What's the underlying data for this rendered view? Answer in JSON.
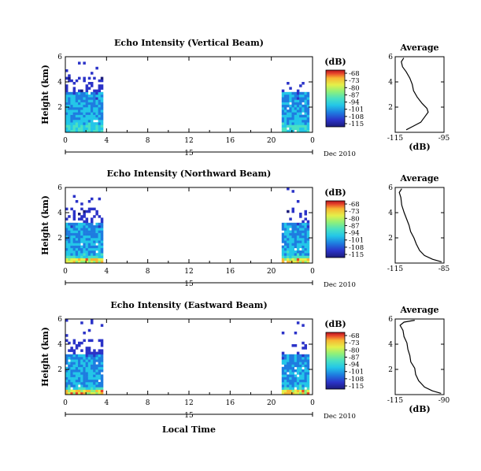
{
  "figure": {
    "xlabel": "Local Time",
    "date_label": "Dec 2010",
    "colorbar_unit": "(dB)",
    "colorbar_ticks": [
      "-68",
      "-73",
      "-80",
      "-87",
      "-94",
      "-101",
      "-108",
      "-115"
    ],
    "colorscale": [
      "#1b1b7a",
      "#2b33c8",
      "#1e7ce0",
      "#23c6e8",
      "#49e0c2",
      "#8ef07a",
      "#e4f04a",
      "#f7b733",
      "#e8462a",
      "#b3121f"
    ]
  },
  "chart_data": [
    {
      "type": "heatmap",
      "title": "Echo Intensity (Vertical Beam)",
      "ylabel": "Height (km)",
      "xticks": [
        "0",
        "4",
        "8",
        "12",
        "16",
        "20",
        "0"
      ],
      "xrange_hours": [
        0,
        24
      ],
      "day_marker": "15",
      "yticks": [
        "2",
        "4",
        "6"
      ],
      "ylim_km": [
        0,
        6
      ],
      "zlim_db": [
        -115,
        -66
      ],
      "data_periods_hours": [
        [
          0,
          3.6
        ],
        [
          21,
          23.6
        ]
      ],
      "profile": {
        "title": "Average",
        "xticks": [
          "-115",
          "-95"
        ],
        "xlim_db": [
          -115,
          -95
        ],
        "xlabel": "(dB)",
        "yticks": [
          "2",
          "4",
          "6"
        ],
        "points": [
          [
            -110.5,
            0.2
          ],
          [
            -107.5,
            0.5
          ],
          [
            -104.5,
            0.8
          ],
          [
            -103,
            1.2
          ],
          [
            -101.5,
            1.6
          ],
          [
            -102,
            1.9
          ],
          [
            -104,
            2.3
          ],
          [
            -106,
            2.8
          ],
          [
            -107.5,
            3.3
          ],
          [
            -108,
            3.8
          ],
          [
            -109,
            4.3
          ],
          [
            -110.5,
            4.8
          ],
          [
            -112,
            5.2
          ],
          [
            -112.5,
            5.6
          ],
          [
            -111.5,
            5.9
          ]
        ]
      }
    },
    {
      "type": "heatmap",
      "title": "Echo Intensity (Northward Beam)",
      "ylabel": "Height (km)",
      "xticks": [
        "0",
        "4",
        "8",
        "12",
        "16",
        "20",
        "0"
      ],
      "xrange_hours": [
        0,
        24
      ],
      "day_marker": "15",
      "yticks": [
        "2",
        "4",
        "6"
      ],
      "ylim_km": [
        0,
        6
      ],
      "zlim_db": [
        -115,
        -66
      ],
      "data_periods_hours": [
        [
          0,
          3.6
        ],
        [
          21,
          23.6
        ]
      ],
      "profile": {
        "title": "Average",
        "xticks": [
          "-115",
          "-85"
        ],
        "xlim_db": [
          -115,
          -85
        ],
        "xlabel": "",
        "yticks": [
          "2",
          "4",
          "6"
        ],
        "points": [
          [
            -86.5,
            0.1
          ],
          [
            -92,
            0.3
          ],
          [
            -97,
            0.6
          ],
          [
            -100,
            1.0
          ],
          [
            -102,
            1.5
          ],
          [
            -103.5,
            2.0
          ],
          [
            -105.5,
            2.5
          ],
          [
            -106.5,
            3.0
          ],
          [
            -108,
            3.5
          ],
          [
            -109.5,
            4.0
          ],
          [
            -111,
            4.6
          ],
          [
            -111.5,
            5.2
          ],
          [
            -112.5,
            5.6
          ],
          [
            -111,
            5.9
          ]
        ]
      }
    },
    {
      "type": "heatmap",
      "title": "Echo Intensity (Eastward Beam)",
      "ylabel": "Height (km)",
      "xticks": [
        "0",
        "4",
        "8",
        "12",
        "16",
        "20",
        "0"
      ],
      "xrange_hours": [
        0,
        24
      ],
      "day_marker": "15",
      "yticks": [
        "2",
        "4",
        "6"
      ],
      "ylim_km": [
        0,
        6
      ],
      "zlim_db": [
        -115,
        -66
      ],
      "data_periods_hours": [
        [
          0,
          3.6
        ],
        [
          21,
          23.6
        ]
      ],
      "profile": {
        "title": "Average",
        "xticks": [
          "-115",
          "-90"
        ],
        "xlim_db": [
          -115,
          -90
        ],
        "xlabel": "(dB)",
        "yticks": [
          "2",
          "4",
          "6"
        ],
        "points": [
          [
            -91.5,
            0.1
          ],
          [
            -96,
            0.3
          ],
          [
            -100,
            0.6
          ],
          [
            -103,
            1.1
          ],
          [
            -104.5,
            1.6
          ],
          [
            -105,
            2.1
          ],
          [
            -107,
            2.6
          ],
          [
            -107.5,
            3.1
          ],
          [
            -108.5,
            3.6
          ],
          [
            -109,
            4.1
          ],
          [
            -110.5,
            4.6
          ],
          [
            -111,
            5.1
          ],
          [
            -112.5,
            5.5
          ],
          [
            -110.5,
            5.75
          ],
          [
            -105,
            5.9
          ]
        ]
      }
    }
  ]
}
